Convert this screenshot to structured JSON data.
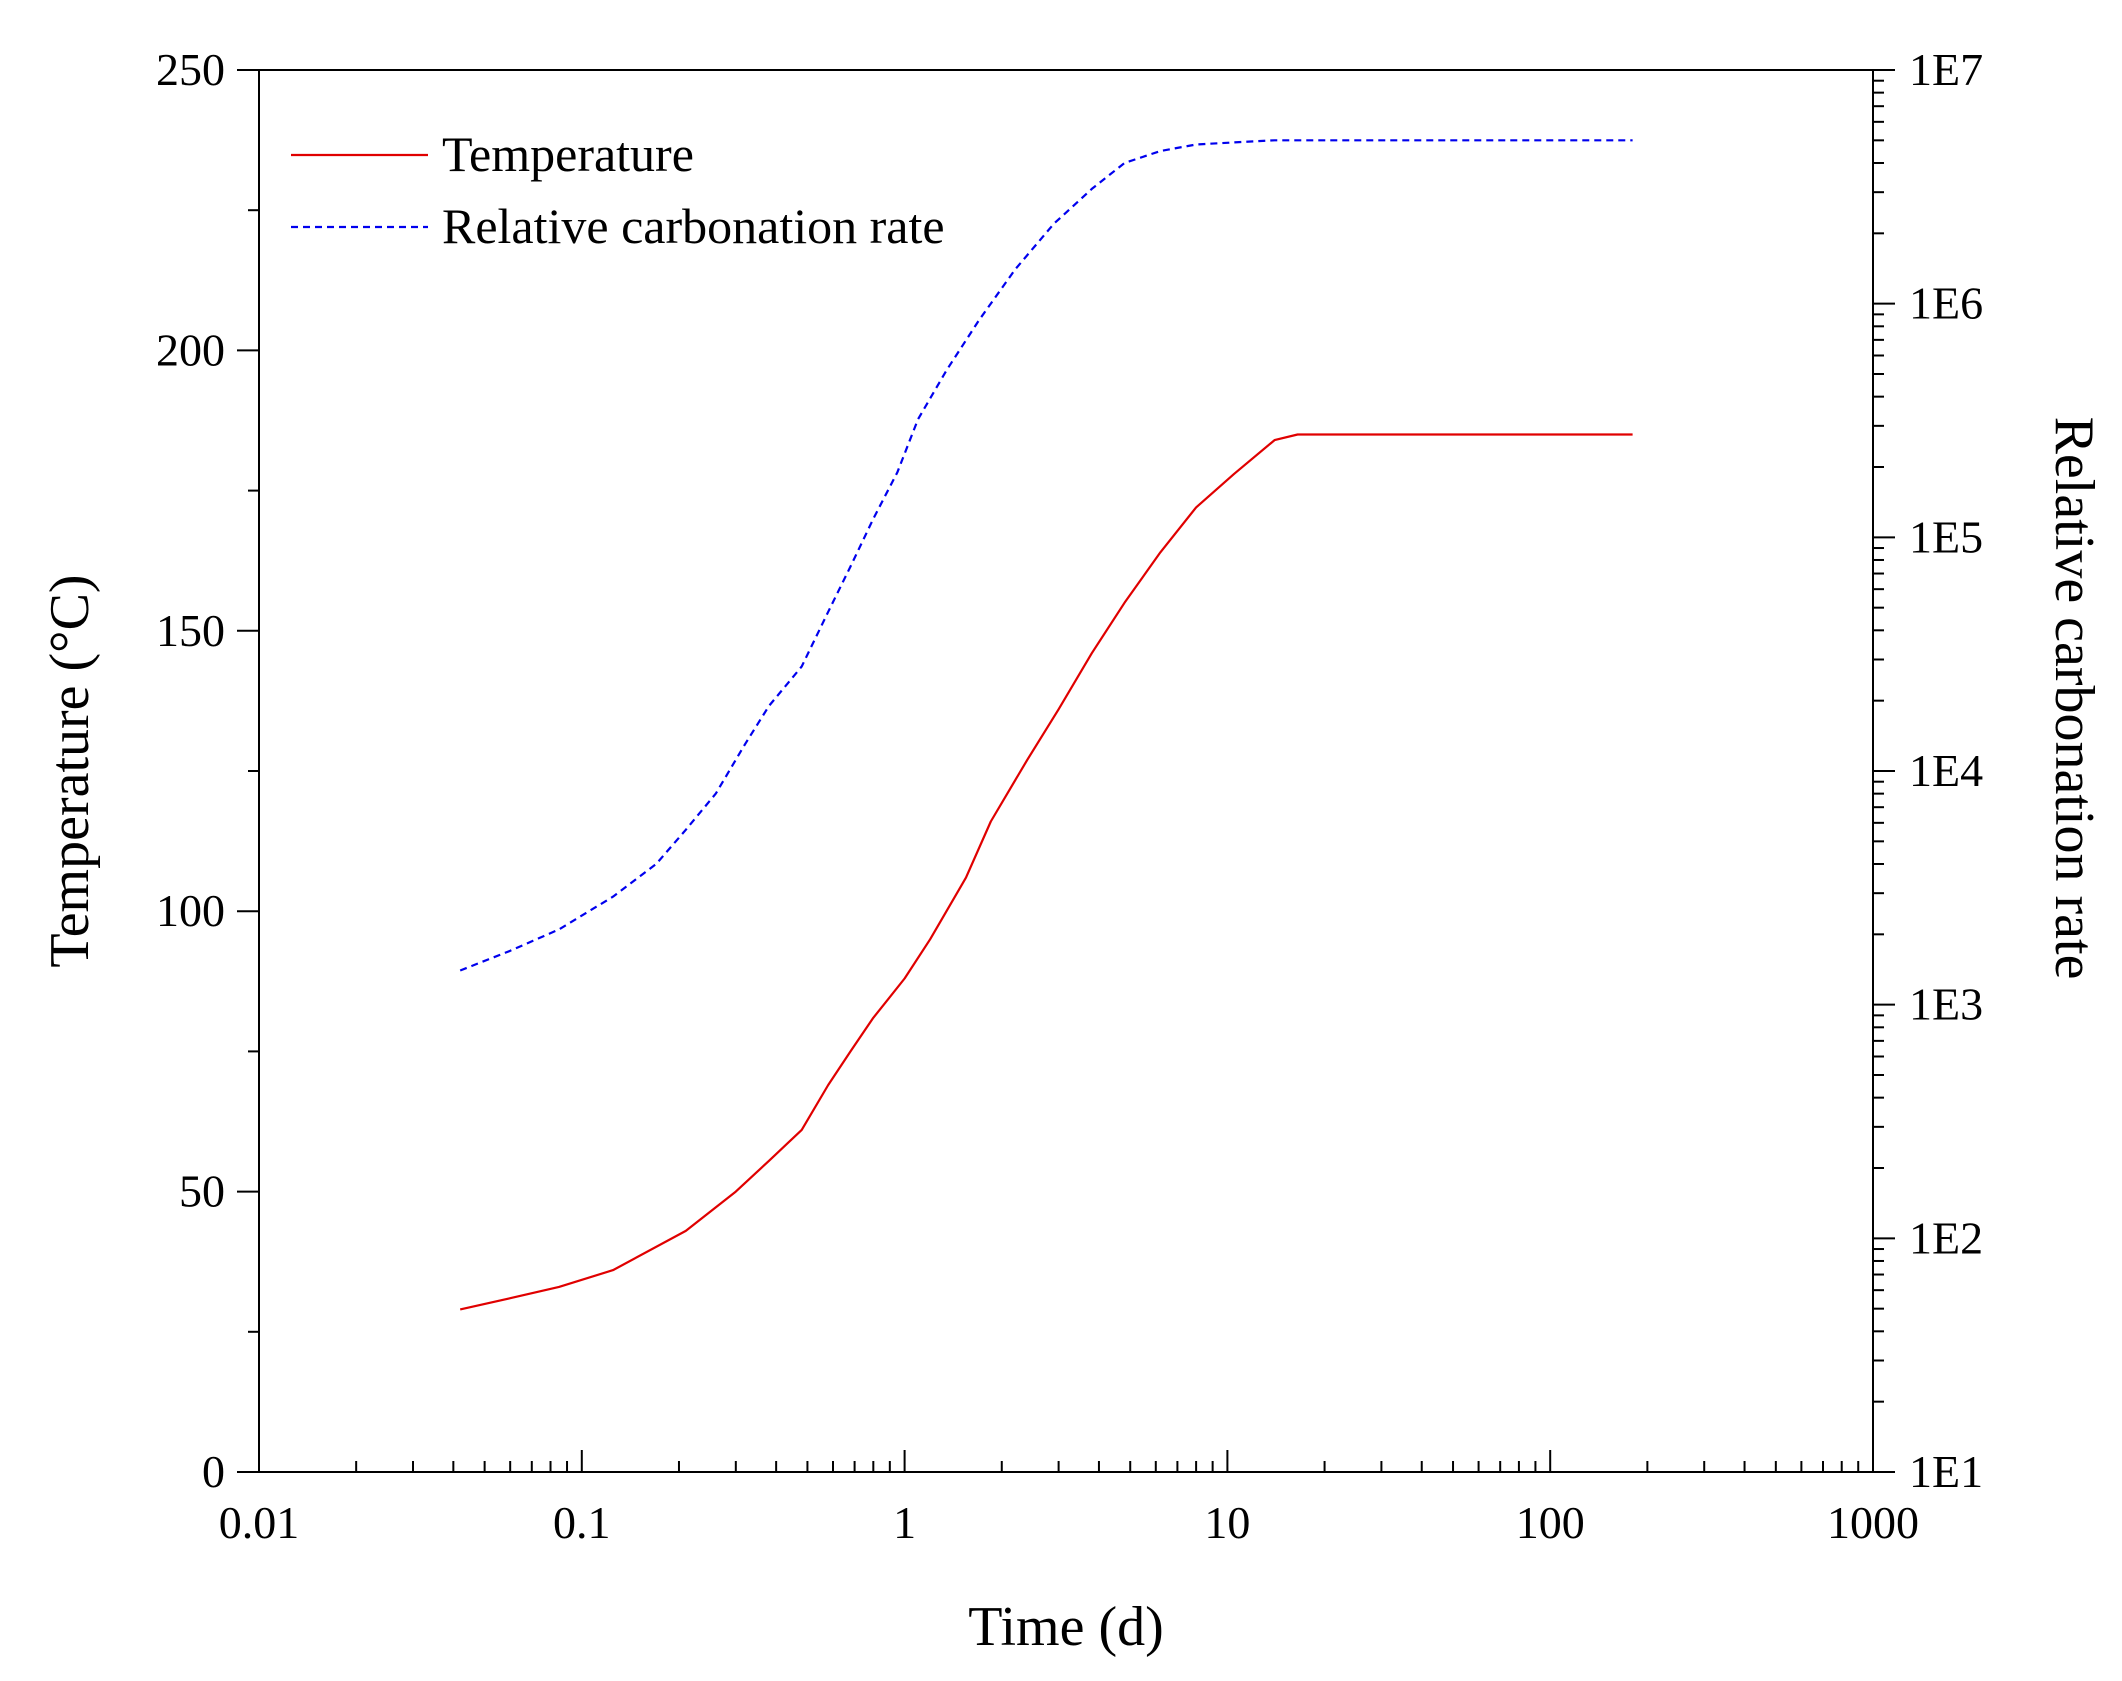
{
  "chart_data": {
    "type": "line",
    "title": "",
    "xlabel": "Time (d)",
    "ylabel": "Temperature (°C)",
    "y2label": "Relative carbonation rate",
    "xscale": "log",
    "xlim": [
      0.01,
      1000
    ],
    "ylim": [
      0,
      250
    ],
    "y2scale": "log",
    "y2lim": [
      10,
      10000000
    ],
    "x_ticks": [
      0.01,
      0.1,
      1,
      10,
      100,
      1000
    ],
    "x_tick_labels": [
      "0.01",
      "0.1",
      "1",
      "10",
      "100",
      "1000"
    ],
    "y_ticks": [
      0,
      50,
      100,
      150,
      200,
      250
    ],
    "y_tick_labels": [
      "0",
      "50",
      "100",
      "150",
      "200",
      "250"
    ],
    "y2_ticks": [
      10,
      100,
      1000,
      10000,
      100000,
      1000000,
      10000000
    ],
    "y2_tick_labels": [
      "1E1",
      "1E2",
      "1E3",
      "1E4",
      "1E5",
      "1E6",
      "1E7"
    ],
    "legend_position": "top-left",
    "grid": false,
    "series": [
      {
        "name": "Temperature",
        "axis": "left",
        "color": "#e00000",
        "style": "solid",
        "x": [
          0.042,
          0.06,
          0.085,
          0.125,
          0.21,
          0.3,
          0.38,
          0.48,
          0.58,
          0.68,
          0.8,
          1.0,
          1.2,
          1.55,
          1.85,
          2.4,
          3.0,
          3.8,
          4.8,
          6.2,
          8.0,
          10.5,
          14.0,
          16.5,
          20,
          50,
          100,
          180
        ],
        "values": [
          29,
          31,
          33,
          36,
          43,
          50,
          55.5,
          61,
          69,
          75,
          81,
          88,
          95,
          106,
          116,
          127,
          136,
          146,
          155,
          164,
          172,
          178,
          184,
          185,
          185,
          185,
          185,
          185
        ]
      },
      {
        "name": "Relative carbonation rate",
        "axis": "right",
        "color": "#0000ee",
        "style": "dashed",
        "x": [
          0.042,
          0.06,
          0.085,
          0.125,
          0.17,
          0.21,
          0.26,
          0.32,
          0.38,
          0.48,
          0.58,
          0.68,
          0.8,
          0.95,
          1.1,
          1.35,
          1.7,
          2.2,
          2.9,
          3.8,
          4.8,
          6.2,
          8.0,
          10.5,
          14.0,
          20,
          50,
          100,
          180
        ],
        "values": [
          1400,
          1700,
          2100,
          2900,
          4000,
          5600,
          8000,
          13000,
          19000,
          28000,
          48000,
          75000,
          120000,
          190000,
          320000,
          520000,
          850000,
          1400000,
          2200000,
          3100000,
          4000000,
          4500000,
          4800000,
          4900000,
          5000000,
          5000000,
          5000000,
          5000000,
          5000000
        ]
      }
    ]
  },
  "legend": {
    "items": [
      {
        "label": "Temperature",
        "color": "#e00000",
        "style": "solid"
      },
      {
        "label": "Relative carbonation rate",
        "color": "#0000ee",
        "style": "dashed"
      }
    ]
  }
}
